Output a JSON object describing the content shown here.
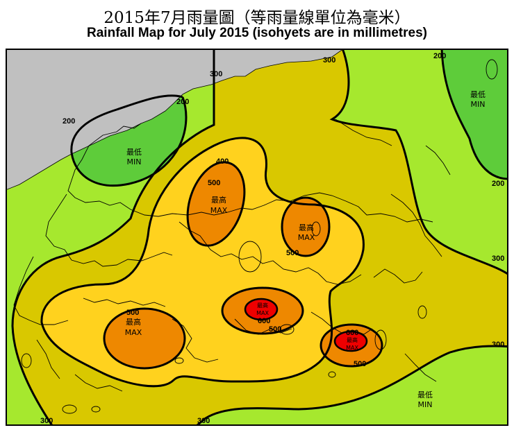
{
  "title_zh": "2015年7月雨量圖（等雨量線單位為毫米）",
  "title_en": "Rainfall Map for July 2015 (isohyets are in millimetres)",
  "colors": {
    "land_gray": "#c0c0c0",
    "band_below_200": "#5ecc3a",
    "band_200_300": "#a6e82e",
    "band_300_400": "#d9c800",
    "band_400_500": "#ffd21e",
    "band_500_600": "#ee8800",
    "band_above_600": "#ee0000"
  },
  "isohyet_labels": {
    "l300_top": "300",
    "l200_top_left": "200",
    "l200_left": "200",
    "l300_top_right": "300",
    "l200_top_right": "200",
    "l200_right": "200",
    "l300_right_mid": "300",
    "l300_right_low": "300",
    "l400": "400",
    "l500_north": "500",
    "l500_center_east": "500",
    "l500_west": "500",
    "l500_south_center": "500",
    "l600_center": "600",
    "l600_southeast": "600",
    "l500_southeast": "500",
    "l300_bottom_left": "300",
    "l300_bottom": "300"
  },
  "markers": {
    "min_nw": {
      "zh": "最低",
      "en": "MIN"
    },
    "min_ne": {
      "zh": "最低",
      "en": "MIN"
    },
    "min_se": {
      "zh": "最低",
      "en": "MIN"
    },
    "max_north": {
      "zh": "最高",
      "en": "MAX"
    },
    "max_east": {
      "zh": "最高",
      "en": "MAX"
    },
    "max_west": {
      "zh": "最高",
      "en": "MAX"
    },
    "max_center": {
      "zh": "最高",
      "en": "MAX"
    },
    "max_southeast": {
      "zh": "最高",
      "en": "MAX"
    }
  }
}
